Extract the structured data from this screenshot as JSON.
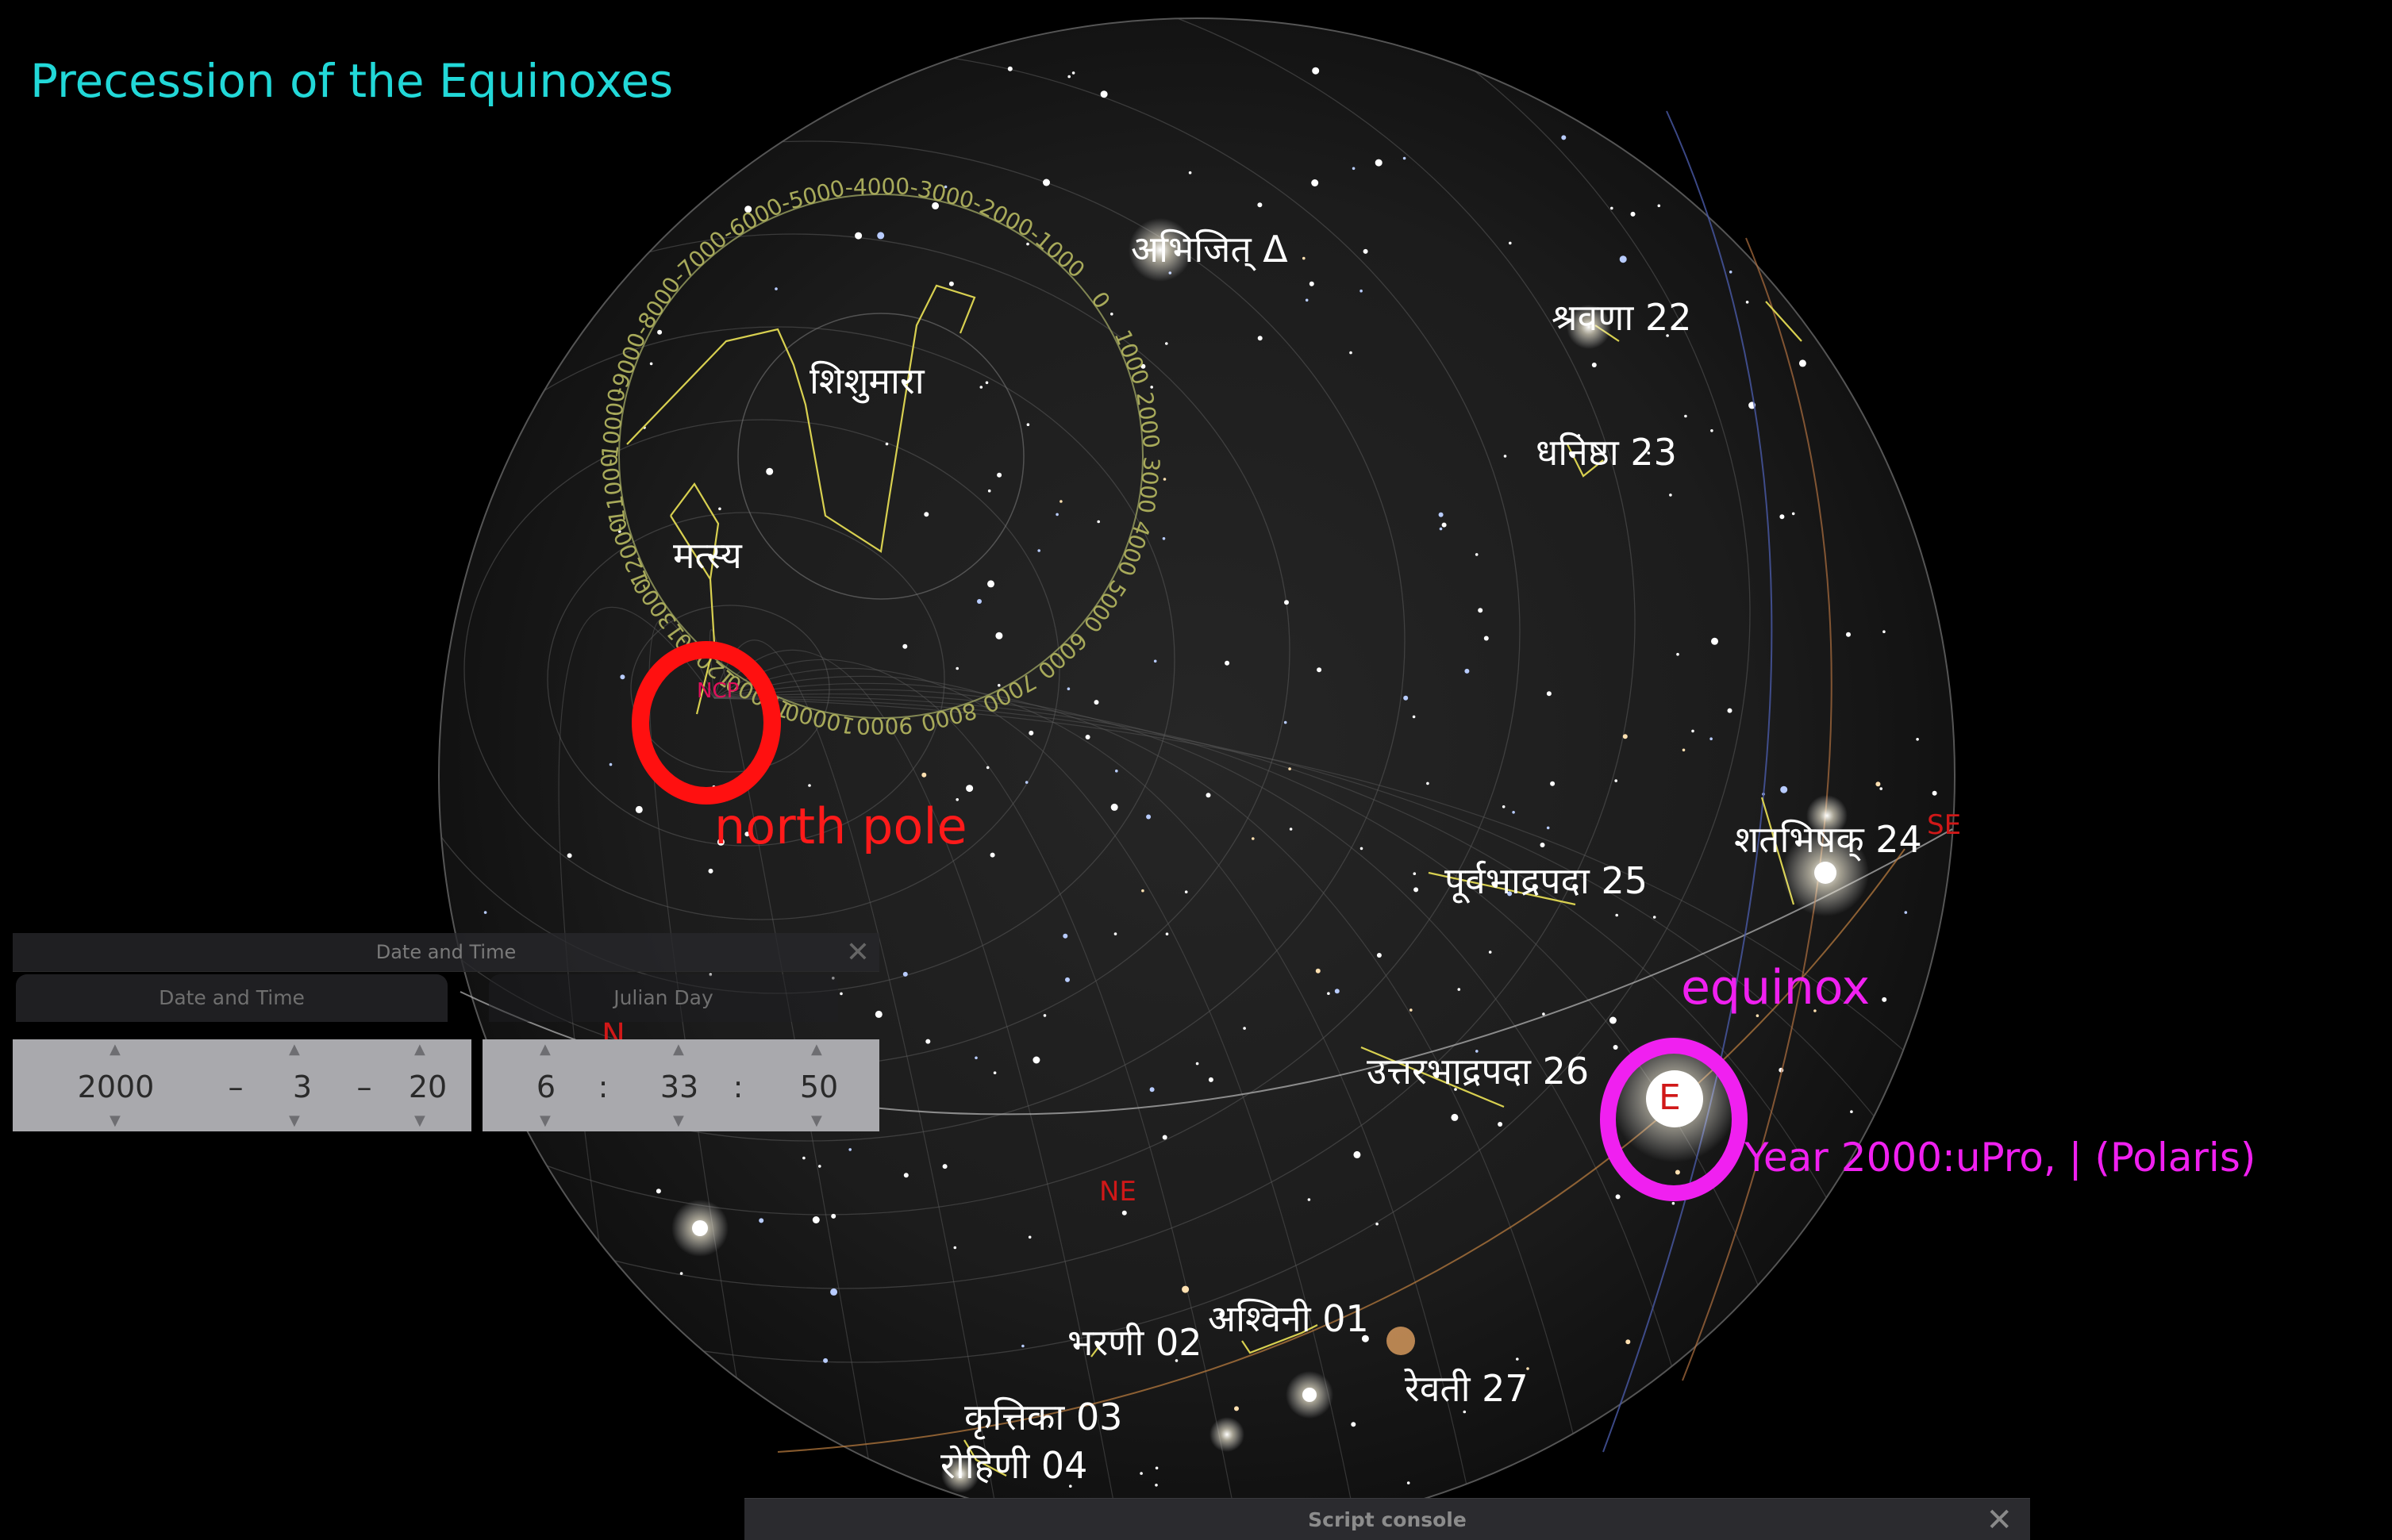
{
  "title": "Precession of the Equinoxes",
  "nakshatras": {
    "abhijit": "अभिजित् Δ",
    "shravana": "श्रवणा 22",
    "dhanishtha": "धनिष्ठा 23",
    "shatabhishak": "शतभिषक् 24",
    "purvabhadrapada": "पूर्वभाद्रपदा 25",
    "uttarabhadrapada": "उत्तरभाद्रपदा 26",
    "revati": "रेवती 27",
    "ashvini": "अश्विनी 01",
    "bharani": "भरणी 02",
    "krittika": "कृत्तिका 03",
    "rohini": "रोहिणी 04"
  },
  "constellations": {
    "shishumara": "शिशुमारा",
    "matsya": "मत्स्य"
  },
  "precession_labels": [
    "-9000",
    "-8000",
    "-7000",
    "-6000",
    "-5000",
    "-4000",
    "-3000",
    "-2000",
    "-1000",
    "0",
    "1000",
    "2000",
    "3000",
    "4000",
    "5000",
    "6000",
    "7000",
    "8000",
    "9000",
    "10000",
    "11000",
    "12000",
    "-13000",
    "-12000",
    "-11000",
    "-10000"
  ],
  "markers": {
    "ncp": "NCP",
    "north": "N",
    "northeast": "NE",
    "southeast": "SE",
    "east": "E"
  },
  "annotations": {
    "north_pole": "north pole",
    "equinox": "equinox",
    "year_note": "Year 2000:uPro,   | (Polaris)"
  },
  "colors": {
    "title": "#22d8d8",
    "north_pole_ring": "#ff1010",
    "equinox_ring": "#f020f0",
    "precession_circle": "#9aa060",
    "constellation_lines": "#d8d050",
    "grid": "#6a6a6a",
    "cardinal": "#d01818"
  },
  "datetime_panel": {
    "window_title": "Date and Time",
    "tab_date": "Date and Time",
    "tab_julian": "Julian Day",
    "close_icon": "✕",
    "year": "2000",
    "sep_date_1": "–",
    "month": "3",
    "sep_date_2": "–",
    "day": "20",
    "hour": "6",
    "sep_time_1": ":",
    "minute": "33",
    "sep_time_2": ":",
    "second": "50"
  },
  "script_console": {
    "title": "Script console",
    "close_icon": "✕"
  }
}
